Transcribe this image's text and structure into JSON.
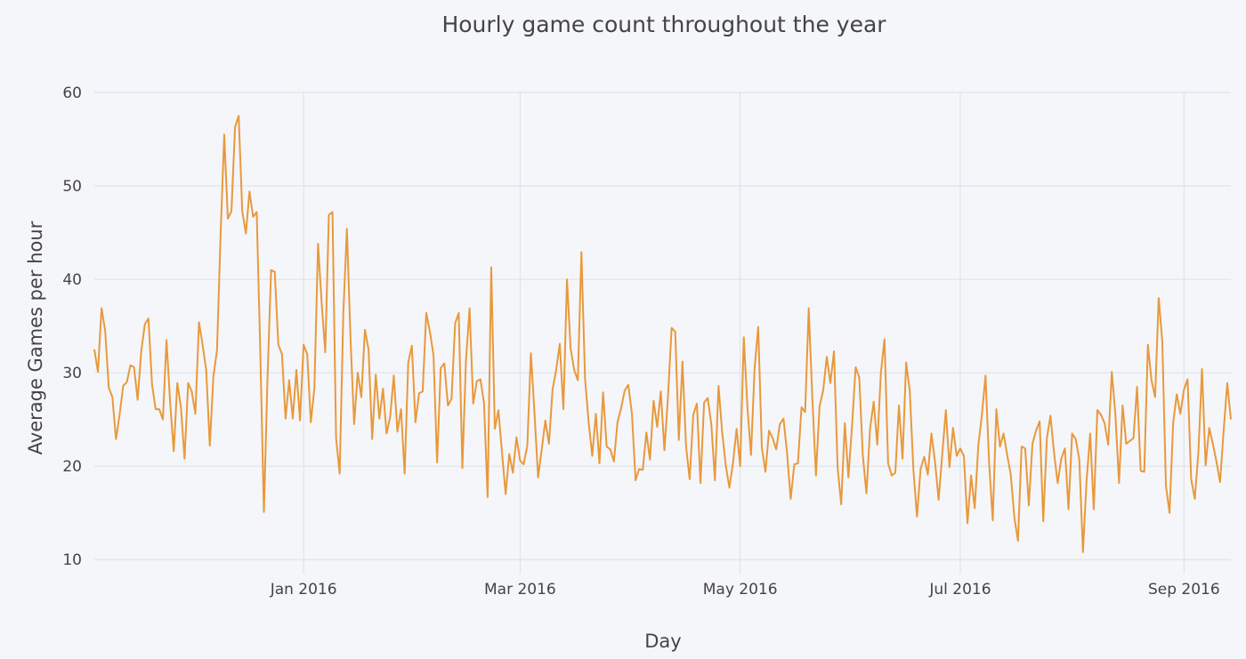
{
  "chart_data": {
    "type": "line",
    "title": "Hourly game count throughout the year",
    "xlabel": "Day",
    "ylabel": "Average Games per hour",
    "x_range": [
      "2015-11-04",
      "2016-09-14"
    ],
    "ylim": [
      8.5,
      60
    ],
    "y_ticks": [
      10,
      20,
      30,
      40,
      50,
      60
    ],
    "x_ticks": [
      {
        "label": "Jan 2016",
        "date": "2016-01-01"
      },
      {
        "label": "Mar 2016",
        "date": "2016-03-01"
      },
      {
        "label": "May 2016",
        "date": "2016-05-01"
      },
      {
        "label": "Jul 2016",
        "date": "2016-07-01"
      },
      {
        "label": "Sep 2016",
        "date": "2016-09-01"
      }
    ],
    "grid": true,
    "colors": {
      "line": "#e8993c",
      "background": "#f5f6fa",
      "grid": "#dcdfe6"
    },
    "series": [
      {
        "start_date": "2015-11-04",
        "step_days": 1,
        "values": [
          32.5,
          30.1,
          36.9,
          34.5,
          28.4,
          27.4,
          22.9,
          25.5,
          28.6,
          29.0,
          30.8,
          30.6,
          27.1,
          32.3,
          35.2,
          35.8,
          28.7,
          26.1,
          26.1,
          25.0,
          33.5,
          26.9,
          21.6,
          28.9,
          26.3,
          20.8,
          28.9,
          28.0,
          25.6,
          35.4,
          33.0,
          30.3,
          22.2,
          29.6,
          32.4,
          44.9,
          55.5,
          46.5,
          47.3,
          56.3,
          57.5,
          47.3,
          44.9,
          49.4,
          46.7,
          47.2,
          32.1,
          15.1,
          29.5,
          41.0,
          40.8,
          33.0,
          32.0,
          25.1,
          29.2,
          25.1,
          30.3,
          24.9,
          33.0,
          32.0,
          24.7,
          28.4,
          43.8,
          37.5,
          32.2,
          46.9,
          47.2,
          23.0,
          19.2,
          36.3,
          45.4,
          33.7,
          24.5,
          30.0,
          27.4,
          34.6,
          32.5,
          22.9,
          29.8,
          25.1,
          28.3,
          23.5,
          25.3,
          29.7,
          23.7,
          26.1,
          19.2,
          31.1,
          32.9,
          24.7,
          27.8,
          28.0,
          36.4,
          34.4,
          31.9,
          20.4,
          30.5,
          31.0,
          26.5,
          27.2,
          35.3,
          36.4,
          19.8,
          31.3,
          36.9,
          26.7,
          29.1,
          29.3,
          26.8,
          16.7,
          41.3,
          24.0,
          26.0,
          21.4,
          17.0,
          21.3,
          19.3,
          23.1,
          20.6,
          20.2,
          22.2,
          32.1,
          25.6,
          18.8,
          21.8,
          24.9,
          22.4,
          28.2,
          30.3,
          33.1,
          26.1,
          40.0,
          32.6,
          30.3,
          29.2,
          42.9,
          29.4,
          24.7,
          21.1,
          25.6,
          20.3,
          27.9,
          22.1,
          21.8,
          20.5,
          24.7,
          26.2,
          28.1,
          28.7,
          25.6,
          18.5,
          19.7,
          19.6,
          23.6,
          20.7,
          27.0,
          24.2,
          28.0,
          21.7,
          27.5,
          34.8,
          34.4,
          22.8,
          31.2,
          22.1,
          18.6,
          25.5,
          26.7,
          18.2,
          26.8,
          27.3,
          24.5,
          18.5,
          28.6,
          23.7,
          20.1,
          17.7,
          20.3,
          24.0,
          20.0,
          33.8,
          26.4,
          21.2,
          30.5,
          34.9,
          22.0,
          19.4,
          23.8,
          23.0,
          21.8,
          24.5,
          25.1,
          21.4,
          16.5,
          20.2,
          20.3,
          26.3,
          25.8,
          36.9,
          27.3,
          19.0,
          26.4,
          28.1,
          31.7,
          28.9,
          32.3,
          19.9,
          15.9,
          24.6,
          18.8,
          24.3,
          30.6,
          29.5,
          21.1,
          17.1,
          24.0,
          26.9,
          22.3,
          30.0,
          33.6,
          20.3,
          19.0,
          19.3,
          26.5,
          20.8,
          31.1,
          28.1,
          19.7,
          14.6,
          19.7,
          21.0,
          19.1,
          23.5,
          20.5,
          16.4,
          21.2,
          26.0,
          19.9,
          24.1,
          21.1,
          21.9,
          21.1,
          13.9,
          19.0,
          15.5,
          22.2,
          25.5,
          29.7,
          20.3,
          14.2,
          26.1,
          22.1,
          23.5,
          21.2,
          19.1,
          14.5,
          12.0,
          22.1,
          21.9,
          15.8,
          22.4,
          23.8,
          24.8,
          14.1,
          23.0,
          25.4,
          21.4,
          18.2,
          20.8,
          21.9,
          15.4,
          23.5,
          22.9,
          20.7,
          10.8,
          18.4,
          23.5,
          15.4,
          26.0,
          25.5,
          24.6,
          22.3,
          30.1,
          25.5,
          18.2,
          26.5,
          22.4,
          22.7,
          23.0,
          28.5,
          19.5,
          19.4,
          33.0,
          29.2,
          27.4,
          38.0,
          33.3,
          17.9,
          15.0,
          24.6,
          27.7,
          25.6,
          28.2,
          29.3,
          18.6,
          16.5,
          21.5,
          30.4,
          20.1,
          24.1,
          22.4,
          20.5,
          18.3,
          23.8,
          28.9,
          25.0
        ]
      }
    ]
  }
}
